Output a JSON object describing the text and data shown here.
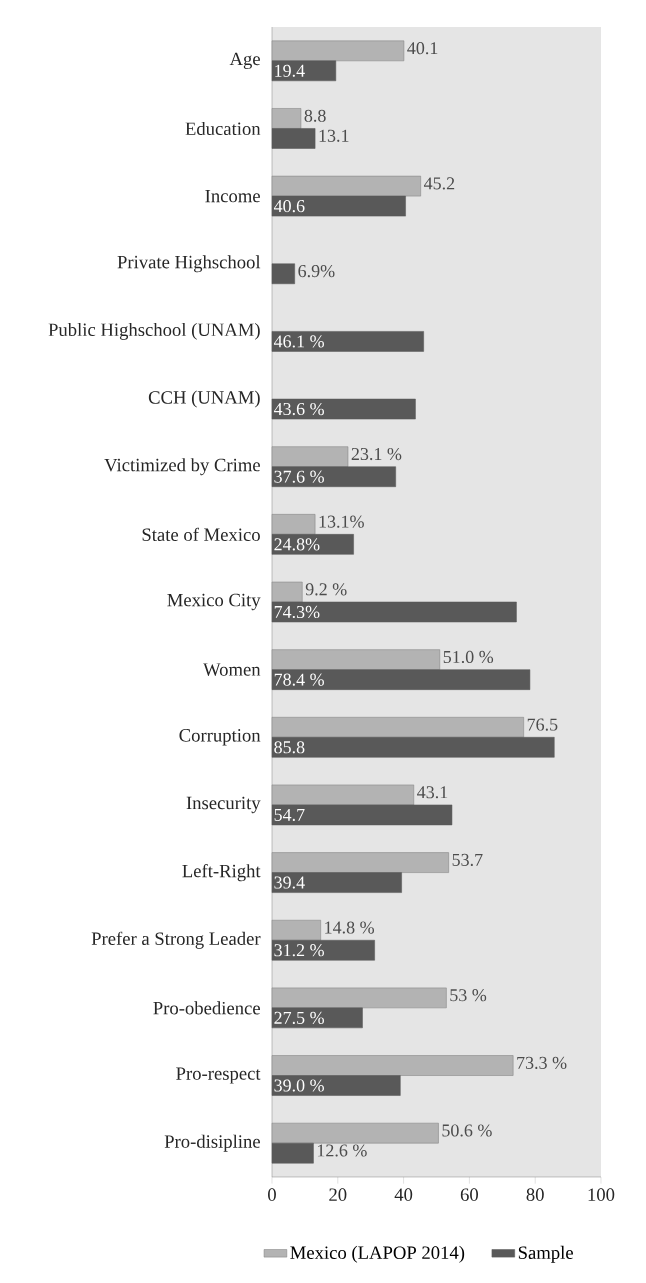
{
  "chart_data": {
    "type": "bar",
    "orientation": "horizontal",
    "categories": [
      "Age",
      "Education",
      "Income",
      "Private Highschool",
      "Public Highschool (UNAM)",
      "CCH (UNAM)",
      "Victimized by Crime",
      "State of Mexico",
      "Mexico City",
      "Women",
      "Corruption",
      "Insecurity",
      "Left-Right",
      "Prefer a Strong Leader",
      "Pro-obedience",
      "Pro-respect",
      "Pro-disipline"
    ],
    "series": [
      {
        "name": "Mexico (LAPOP 2014)",
        "color": "#b3b3b3",
        "values": [
          40.1,
          8.8,
          45.2,
          null,
          null,
          null,
          23.1,
          13.1,
          9.2,
          51.0,
          76.5,
          43.1,
          53.7,
          14.8,
          53,
          73.3,
          50.6
        ],
        "value_labels": [
          "40.1",
          "8.8",
          "45.2",
          null,
          null,
          null,
          "23.1 %",
          "13.1%",
          "9.2 %",
          "51.0 %",
          "76.5",
          "43.1",
          "53.7",
          "14.8 %",
          "53 %",
          "73.3 %",
          "50.6 %"
        ]
      },
      {
        "name": "Sample",
        "color": "#595959",
        "values": [
          19.4,
          13.1,
          40.6,
          6.9,
          46.1,
          43.6,
          37.6,
          24.8,
          74.3,
          78.4,
          85.8,
          54.7,
          39.4,
          31.2,
          27.5,
          39.0,
          12.6
        ],
        "value_labels": [
          "19.4",
          "13.1",
          "40.6",
          "6.9%",
          "46.1 %",
          "43.6 %",
          "37.6 %",
          "24.8%",
          "74.3%",
          "78.4 %",
          "85.8",
          "54.7",
          "39.4",
          "31.2 %",
          "27.5 %",
          "39.0 %",
          "12.6 %"
        ]
      }
    ],
    "xlim": [
      0,
      100
    ],
    "xticks": [
      0,
      20,
      40,
      60,
      80,
      100
    ],
    "legend": "bottom"
  }
}
